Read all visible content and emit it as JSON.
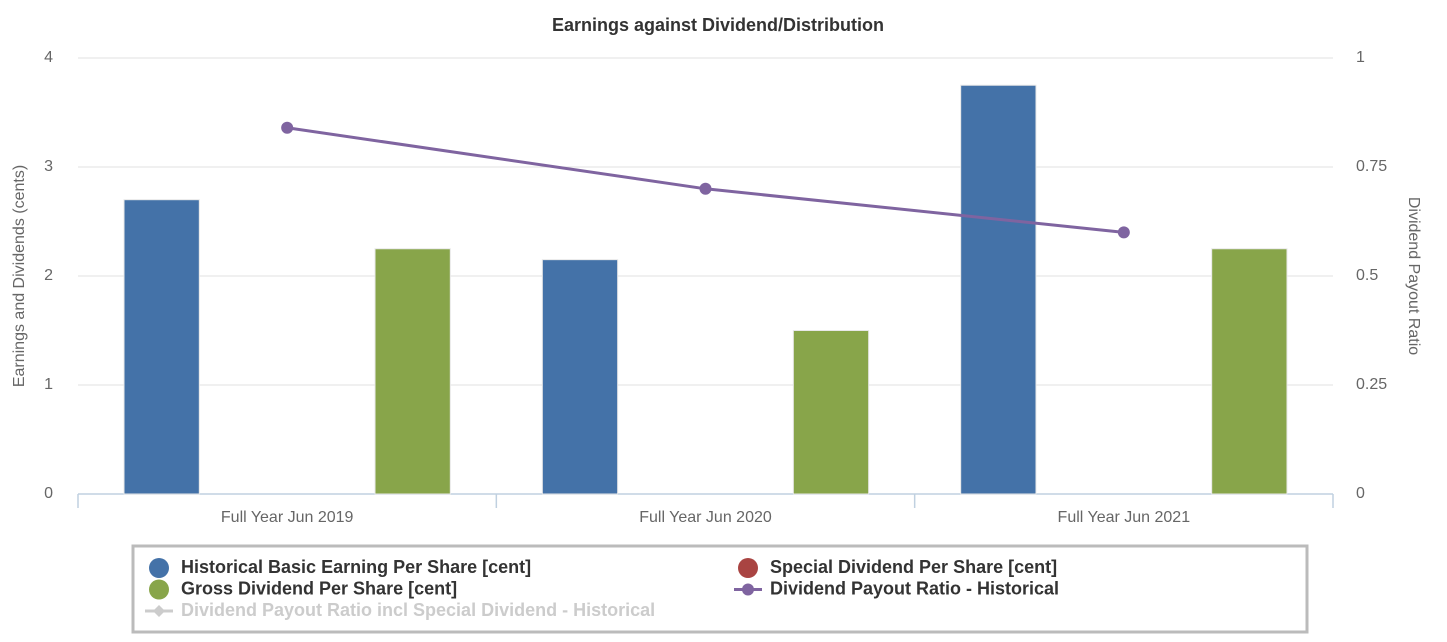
{
  "chart_data": {
    "type": "bar",
    "title": "Earnings against Dividend/Distribution",
    "y_label": "Earnings and Dividends (cents)",
    "y2_label": "Dividend Payout Ratio",
    "categories": [
      "Full Year Jun 2019",
      "Full Year Jun 2020",
      "Full Year Jun 2021"
    ],
    "ylim": [
      0,
      4
    ],
    "yticks": [
      0,
      1,
      2,
      3,
      4
    ],
    "y2lim": [
      0,
      1
    ],
    "y2ticks": [
      0,
      0.25,
      0.5,
      0.75,
      1
    ],
    "grid": true,
    "series": [
      {
        "name": "Historical Basic Earning Per Share [cent]",
        "type": "bar",
        "color": "#4472a8",
        "values": [
          2.7,
          2.15,
          3.75
        ]
      },
      {
        "name": "Special Dividend Per Share [cent]",
        "type": "bar",
        "color": "#a94442",
        "values": [
          null,
          null,
          null
        ]
      },
      {
        "name": "Gross Dividend Per Share [cent]",
        "type": "bar",
        "color": "#88a54a",
        "values": [
          2.25,
          1.5,
          2.25
        ]
      },
      {
        "name": "Dividend Payout Ratio - Historical",
        "type": "line",
        "axis": "y2",
        "color": "#7f64a0",
        "values": [
          0.84,
          0.7,
          0.6
        ]
      },
      {
        "name": "Dividend Payout Ratio incl Special Dividend - Historical",
        "type": "line",
        "axis": "y2",
        "color": "#cccccc",
        "visible": false,
        "values": [
          null,
          null,
          null
        ]
      }
    ]
  }
}
